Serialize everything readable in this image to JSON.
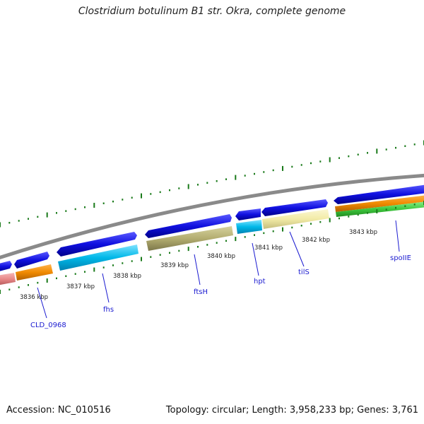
{
  "header": {
    "title": "Clostridium botulinum B1 str. Okra, complete genome"
  },
  "footer": {
    "accession": "Accession: NC_010516",
    "topology": "Topology: circular; Length: 3,958,233 bp; Genes: 3,761"
  },
  "ticks": [
    "3836 kbp",
    "3837 kbp",
    "3838 kbp",
    "3839 kbp",
    "3840 kbp",
    "3841 kbp",
    "3842 kbp",
    "3843 kbp"
  ],
  "genes": [
    "CLD_0968",
    "fhs",
    "ftsH",
    "hpt",
    "tilS",
    "spoIIE"
  ],
  "colors": {
    "cds": "#1010e0",
    "backbone": "#8a8a8a",
    "gc_skew": "#1a7a1a",
    "label": "#1a1ad0",
    "cog_orange": "#f08a00",
    "cog_cyan": "#00b8e8",
    "cog_olive": "#b3ad70",
    "cog_pale": "#f2eba6",
    "cog_pink": "#e88888",
    "cog_green": "#3ec83e"
  }
}
